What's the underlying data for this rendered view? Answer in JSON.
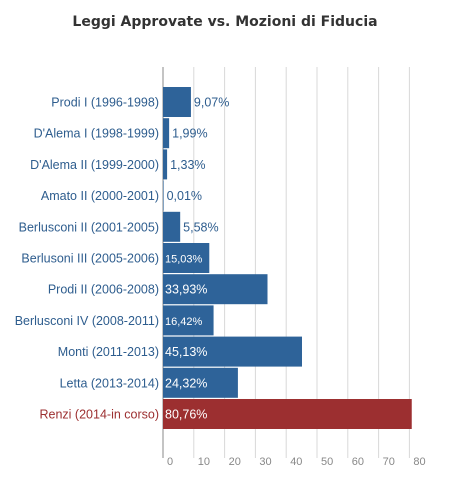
{
  "chart_data": {
    "type": "bar",
    "orientation": "horizontal",
    "title": "Leggi Approvate vs. Mozioni di Fiducia",
    "categories": [
      "Prodi I (1996-1998)",
      "D'Alema I (1998-1999)",
      "D'Alema II (1999-2000)",
      "Amato II (2000-2001)",
      "Berlusconi II (2001-2005)",
      "Berlusoni III (2005-2006)",
      "Prodi II (2006-2008)",
      "Berlusconi IV (2008-2011)",
      "Monti (2011-2013)",
      "Letta (2013-2014)",
      "Renzi (2014-in corso)"
    ],
    "values": [
      9.07,
      1.99,
      1.33,
      0.01,
      5.58,
      15.03,
      33.93,
      16.42,
      45.13,
      24.32,
      80.76
    ],
    "data_labels": [
      "9,07%",
      "1,99%",
      "1,33%",
      "0,01%",
      "5,58%",
      "15,03%",
      "33,93%",
      "16,42%",
      "45,13%",
      "24,32%",
      "80,76%"
    ],
    "xlim": [
      0,
      80
    ],
    "ticks": [
      "0",
      "10",
      "20",
      "30",
      "40",
      "50",
      "60",
      "70",
      "80"
    ],
    "tick_values": [
      0,
      10,
      20,
      30,
      40,
      50,
      60,
      70,
      80
    ],
    "grid": true,
    "colors": {
      "bar": "#2e6399",
      "highlight_bar": "#9c2f30",
      "label": "#2e5d8e",
      "highlight_label": "#9c2f30",
      "highlight_index": 10
    }
  }
}
